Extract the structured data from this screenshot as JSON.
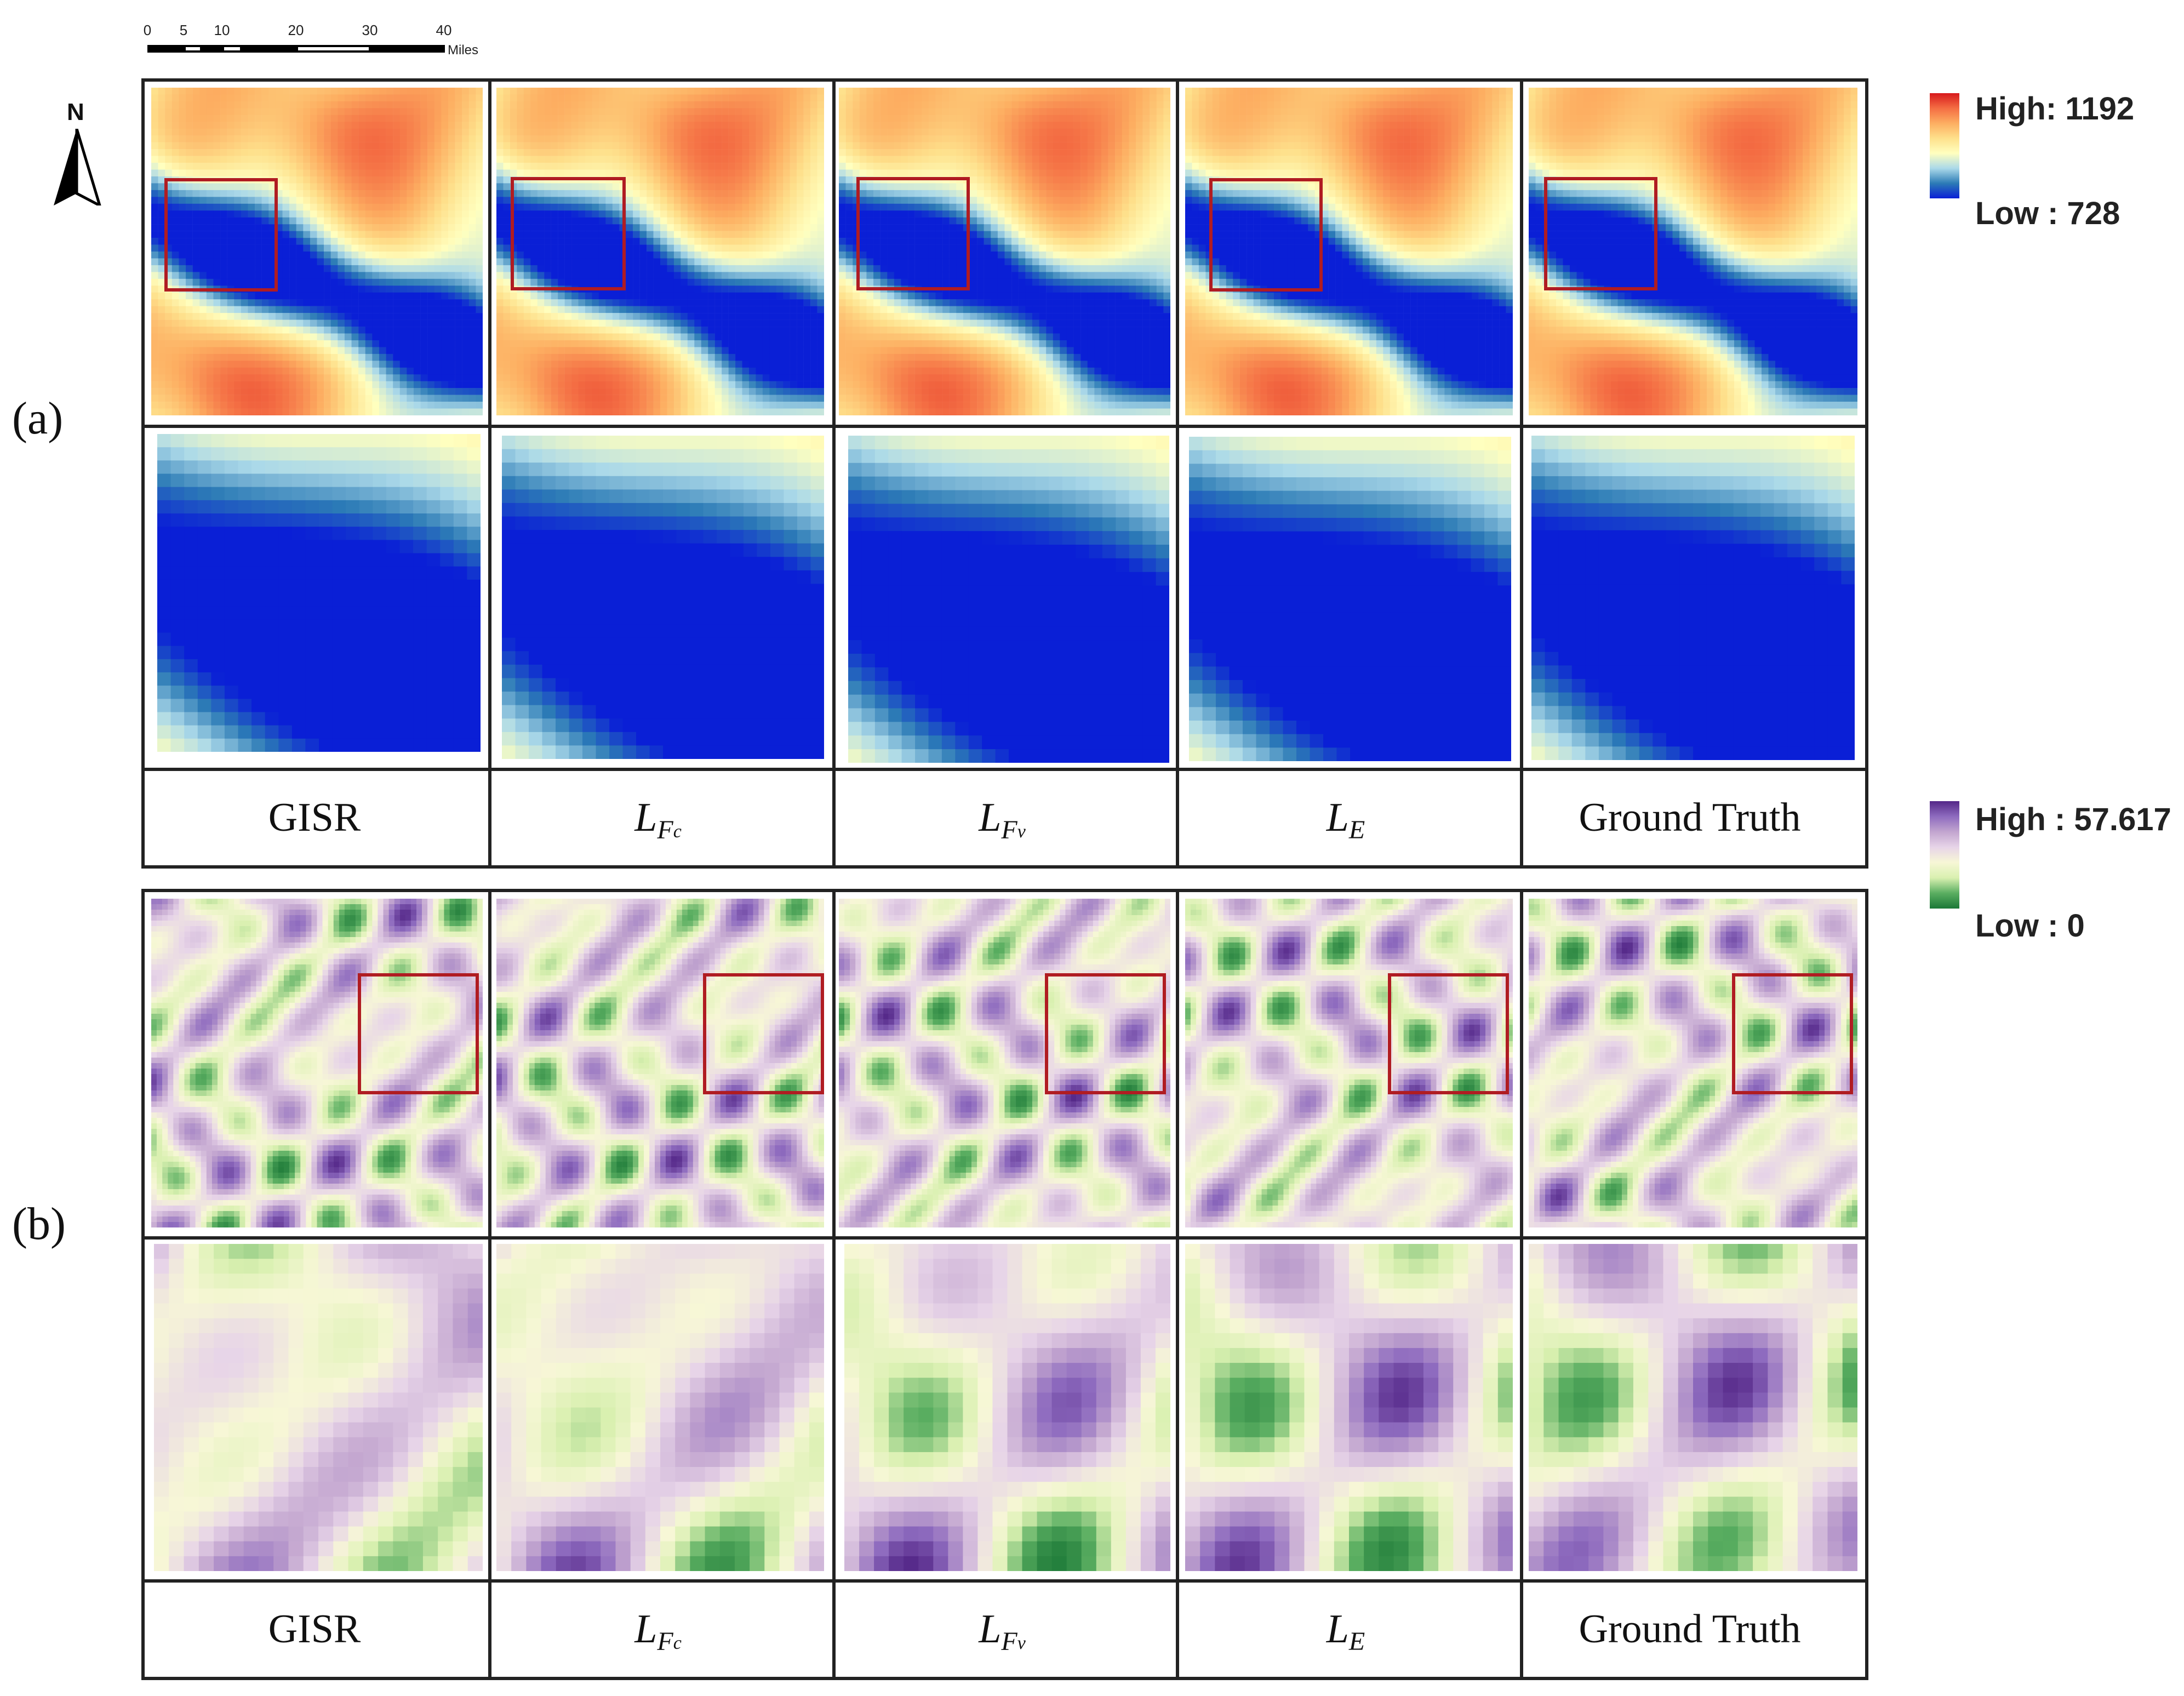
{
  "scale_bar": {
    "ticks": [
      "0",
      "5",
      "10",
      "20",
      "30",
      "40"
    ],
    "tick_values": [
      0,
      5,
      10,
      20,
      30,
      40
    ],
    "units": "Miles"
  },
  "north_arrow": {
    "label": "N"
  },
  "panels": [
    {
      "letter": "(a)",
      "variable": "elevation",
      "columns": [
        "GISR",
        "L_Fc",
        "L_Fv",
        "L_E",
        "Ground Truth"
      ],
      "legend": {
        "high": "High: 1192",
        "low": "Low : 728",
        "colors": [
          "#d7191c",
          "#f46d43",
          "#fdae61",
          "#fee08b",
          "#ffffbf",
          "#abd9e9",
          "#2c7bb6",
          "#0a1fd6"
        ]
      }
    },
    {
      "letter": "(b)",
      "variable": "slope",
      "columns": [
        "GISR",
        "L_Fc",
        "L_Fv",
        "L_E",
        "Ground Truth"
      ],
      "legend": {
        "high": "High : 57.617",
        "low": "Low : 0",
        "colors": [
          "#542788",
          "#8e6bbf",
          "#c2a5cf",
          "#e7d4e8",
          "#f7f7d6",
          "#d9f0b0",
          "#5aae61",
          "#1b7837"
        ]
      }
    }
  ],
  "column_labels": {
    "gisr": "GISR",
    "lfc_main": "L",
    "lfc_sub": "F",
    "lfc_subsub": "c",
    "lfv_main": "L",
    "lfv_sub": "F",
    "lfv_subsub": "v",
    "le_main": "L",
    "le_sub": "E",
    "ground_truth": "Ground Truth"
  }
}
